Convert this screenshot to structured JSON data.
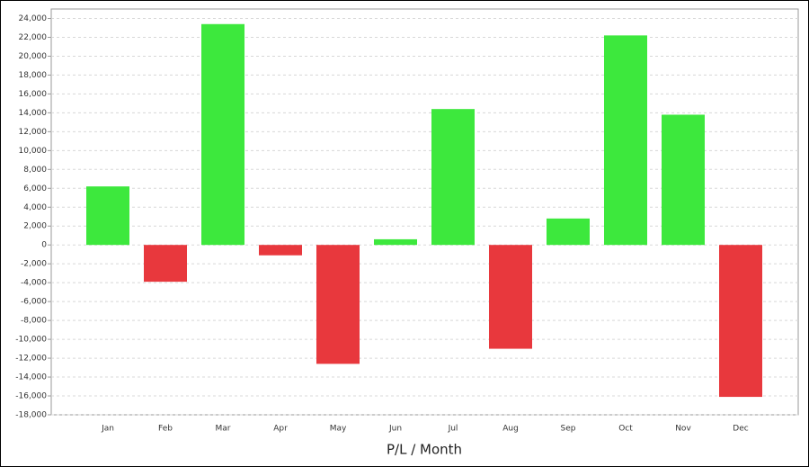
{
  "chart_data": {
    "type": "bar",
    "x_label": "P/L / Month",
    "categories": [
      "Jan",
      "Feb",
      "Mar",
      "Apr",
      "May",
      "Jun",
      "Jul",
      "Aug",
      "Sep",
      "Oct",
      "Nov",
      "Dec"
    ],
    "values": [
      6200,
      -3900,
      23400,
      -1100,
      -12600,
      600,
      14400,
      -11000,
      2800,
      22200,
      13800,
      -16100
    ],
    "positive_color": "#3de83d",
    "negative_color": "#e8383d",
    "ylim": [
      -18000,
      25000
    ],
    "yticks": [
      {
        "value": -18000,
        "label": "-18,000"
      },
      {
        "value": -16000,
        "label": "-16,000"
      },
      {
        "value": -14000,
        "label": "-14,000"
      },
      {
        "value": -12000,
        "label": "-12,000"
      },
      {
        "value": -10000,
        "label": "-10,000"
      },
      {
        "value": -8000,
        "label": "-8,000"
      },
      {
        "value": -6000,
        "label": "-6,000"
      },
      {
        "value": -4000,
        "label": "-4,000"
      },
      {
        "value": -2000,
        "label": "-2,000"
      },
      0,
      {
        "value": 2000,
        "label": "2,000"
      },
      {
        "value": 4000,
        "label": "4,000"
      },
      {
        "value": 6000,
        "label": "6,000"
      },
      {
        "value": 8000,
        "label": "8,000"
      },
      {
        "value": 10000,
        "label": "10,000"
      },
      {
        "value": 12000,
        "label": "12,000"
      },
      {
        "value": 14000,
        "label": "14,000"
      },
      {
        "value": 16000,
        "label": "16,000"
      },
      {
        "value": 18000,
        "label": "18,000"
      },
      {
        "value": 20000,
        "label": "20,000"
      },
      {
        "value": 22000,
        "label": "22,000"
      },
      {
        "value": 24000,
        "label": "24,000"
      }
    ],
    "grid": true
  }
}
